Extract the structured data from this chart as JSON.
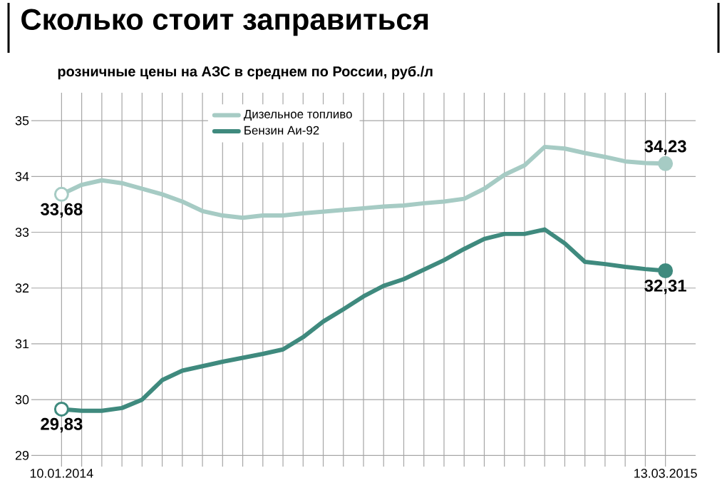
{
  "chart_data": {
    "type": "line",
    "title": "Сколько стоит заправиться",
    "subtitle": "розничные цены на АЗС в среднем по России, руб./л",
    "categories": [
      "10.01.2014",
      null,
      null,
      null,
      null,
      null,
      null,
      null,
      null,
      null,
      null,
      null,
      null,
      null,
      null,
      null,
      null,
      null,
      null,
      null,
      null,
      null,
      null,
      null,
      null,
      null,
      null,
      null,
      null,
      null,
      "13.03.2015"
    ],
    "series": [
      {
        "name": "Дизельное топливо",
        "color": "#a6cbc4",
        "values": [
          33.68,
          33.85,
          33.93,
          33.88,
          33.78,
          33.68,
          33.55,
          33.38,
          33.3,
          33.26,
          33.3,
          33.3,
          33.34,
          33.37,
          33.4,
          33.43,
          33.46,
          33.48,
          33.52,
          33.55,
          33.6,
          33.78,
          34.03,
          34.2,
          34.53,
          34.5,
          34.42,
          34.35,
          34.27,
          34.24,
          34.23
        ],
        "value_labels": [
          "33,68",
          null,
          null,
          null,
          null,
          null,
          null,
          null,
          null,
          null,
          null,
          null,
          null,
          null,
          null,
          null,
          null,
          null,
          null,
          null,
          null,
          null,
          null,
          null,
          null,
          null,
          null,
          null,
          null,
          null,
          "34,23"
        ]
      },
      {
        "name": "Бензин Аи-92",
        "color": "#3f8a7e",
        "values": [
          29.83,
          29.8,
          29.8,
          29.85,
          30.0,
          30.35,
          30.52,
          30.6,
          30.68,
          30.75,
          30.82,
          30.9,
          31.12,
          31.4,
          31.62,
          31.85,
          32.04,
          32.16,
          32.33,
          32.5,
          32.7,
          32.88,
          32.97,
          32.97,
          33.05,
          32.8,
          32.47,
          32.43,
          32.38,
          32.34,
          32.31
        ],
        "value_labels": [
          "29,83",
          null,
          null,
          null,
          null,
          null,
          null,
          null,
          null,
          null,
          null,
          null,
          null,
          null,
          null,
          null,
          null,
          null,
          null,
          null,
          null,
          null,
          null,
          null,
          null,
          null,
          null,
          null,
          null,
          null,
          "32,31"
        ]
      }
    ],
    "ylim": [
      28.8,
      35.5
    ],
    "yticks": [
      29,
      30,
      31,
      32,
      33,
      34,
      35
    ],
    "grid": true,
    "legend": "top",
    "marker": "none",
    "line_style": "solid"
  }
}
